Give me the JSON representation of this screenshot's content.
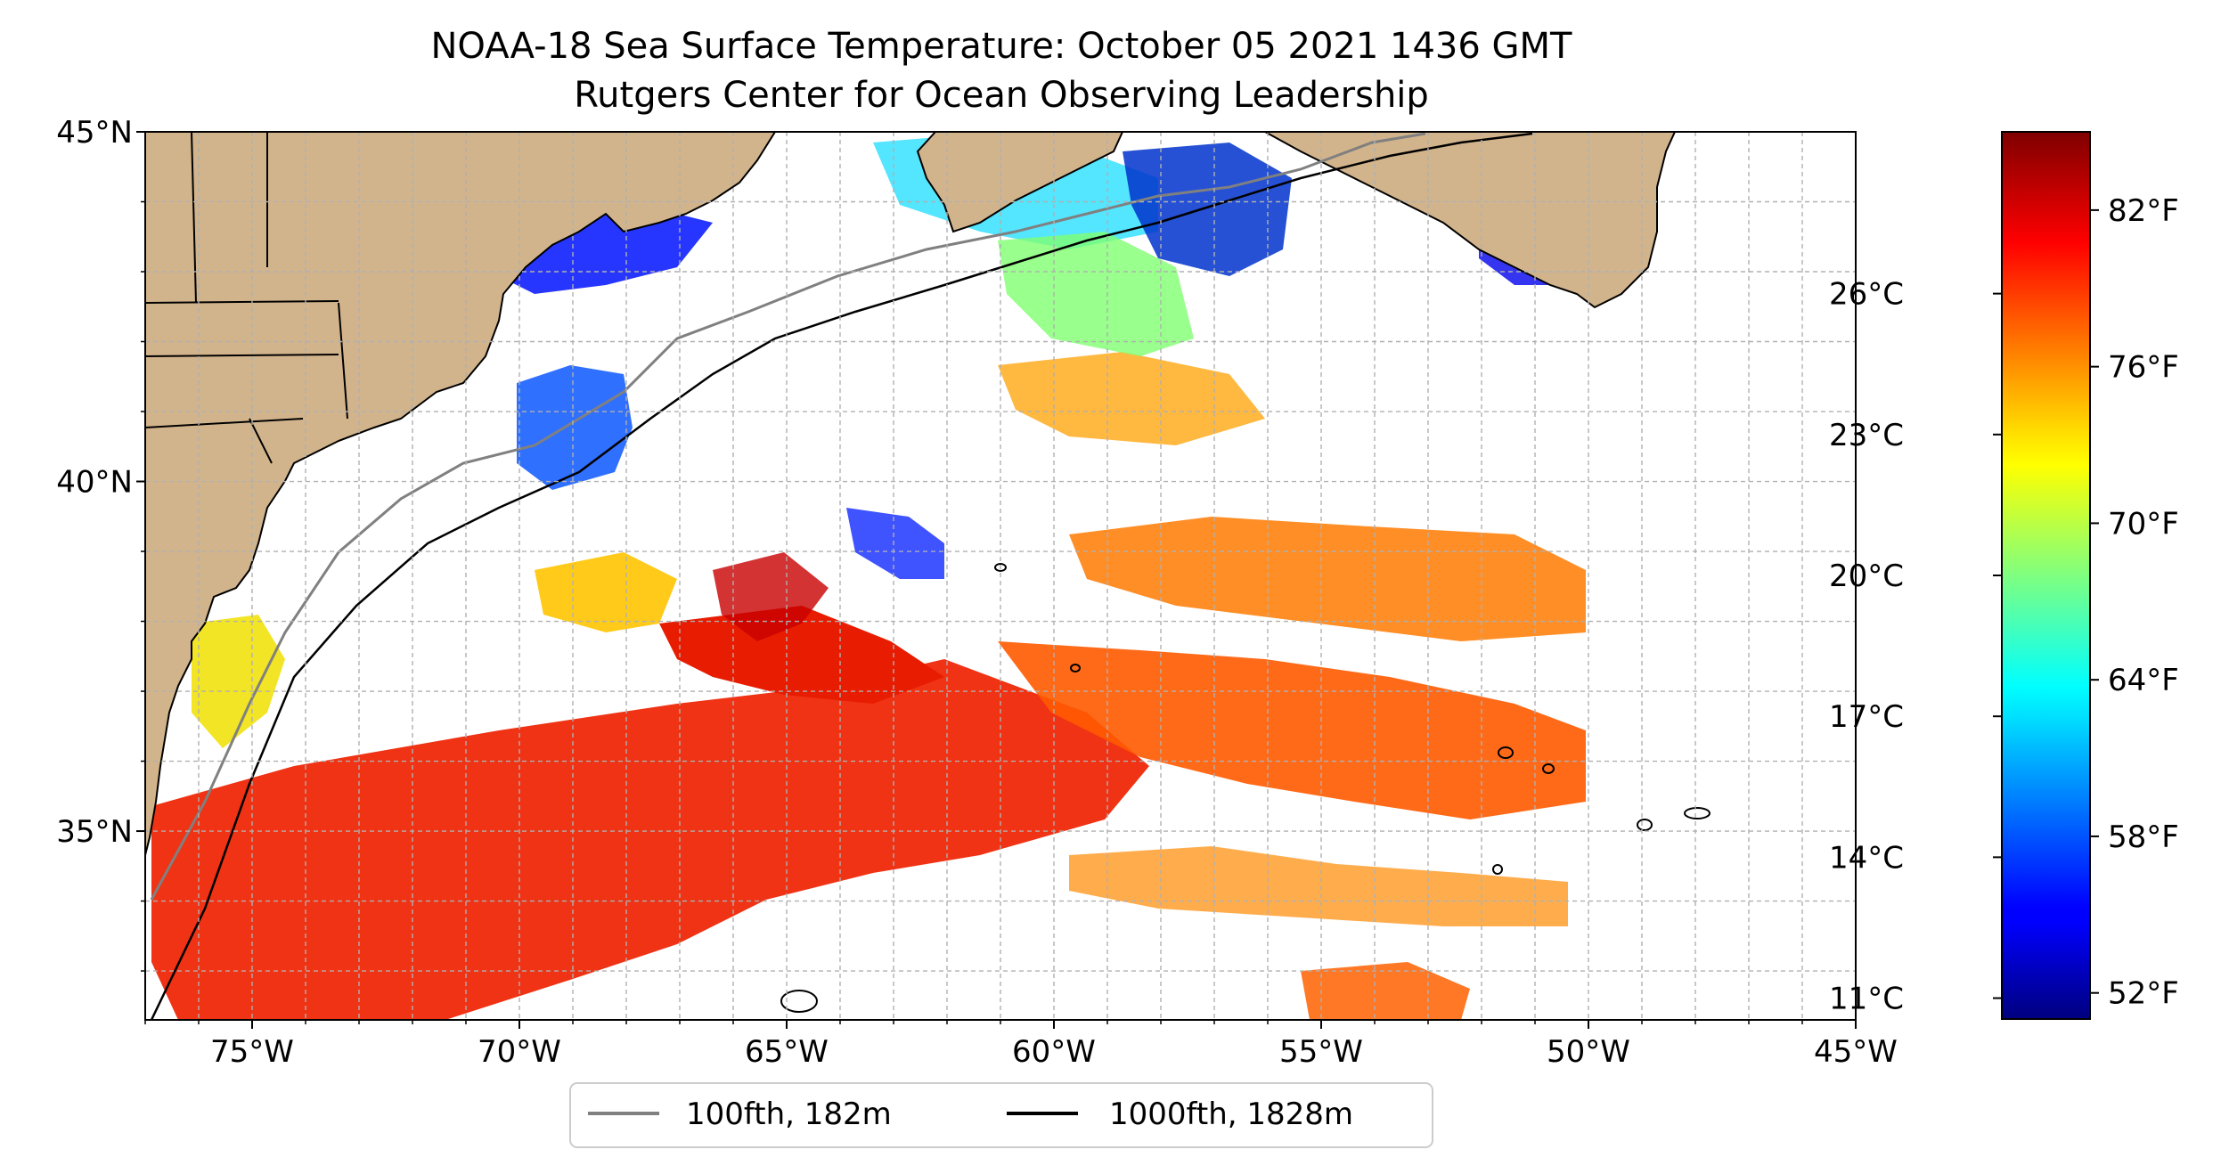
{
  "map": {
    "title_line1": "NOAA-18 Sea Surface Temperature: October 05 2021 1436 GMT",
    "title_line2": "Rutgers Center for Ocean Observing Leadership",
    "extent": {
      "lon_min": -77,
      "lon_max": -45,
      "lat_min": 32.3,
      "lat_max": 45
    },
    "lon_ticks": [
      {
        "lon": -75,
        "label": "75°W"
      },
      {
        "lon": -70,
        "label": "70°W"
      },
      {
        "lon": -65,
        "label": "65°W"
      },
      {
        "lon": -60,
        "label": "60°W"
      },
      {
        "lon": -55,
        "label": "55°W"
      },
      {
        "lon": -50,
        "label": "50°W"
      },
      {
        "lon": -45,
        "label": "45°W"
      }
    ],
    "lat_ticks": [
      {
        "lat": 45,
        "label": "45°N"
      },
      {
        "lat": 40,
        "label": "40°N"
      },
      {
        "lat": 35,
        "label": "35°N"
      }
    ],
    "land_color": "#d2b48c",
    "ocean_color": "#ffffff",
    "gridlines": true
  },
  "legend": {
    "position": "bottom-center",
    "entries": [
      {
        "label": "100fth, 182m",
        "color": "#808080"
      },
      {
        "label": "1000fth, 1828m",
        "color": "#000000"
      }
    ]
  },
  "colorbar": {
    "colormap": "jet",
    "range_f": [
      51,
      85
    ],
    "fahrenheit_ticks": [
      {
        "value": 82,
        "label": "82°F"
      },
      {
        "value": 76,
        "label": "76°F"
      },
      {
        "value": 70,
        "label": "70°F"
      },
      {
        "value": 64,
        "label": "64°F"
      },
      {
        "value": 58,
        "label": "58°F"
      },
      {
        "value": 52,
        "label": "52°F"
      }
    ],
    "celsius_ticks": [
      {
        "value": 26,
        "label": "26°C"
      },
      {
        "value": 23,
        "label": "23°C"
      },
      {
        "value": 20,
        "label": "20°C"
      },
      {
        "value": 17,
        "label": "17°C"
      },
      {
        "value": 14,
        "label": "14°C"
      },
      {
        "value": 11,
        "label": "11°C"
      }
    ]
  }
}
